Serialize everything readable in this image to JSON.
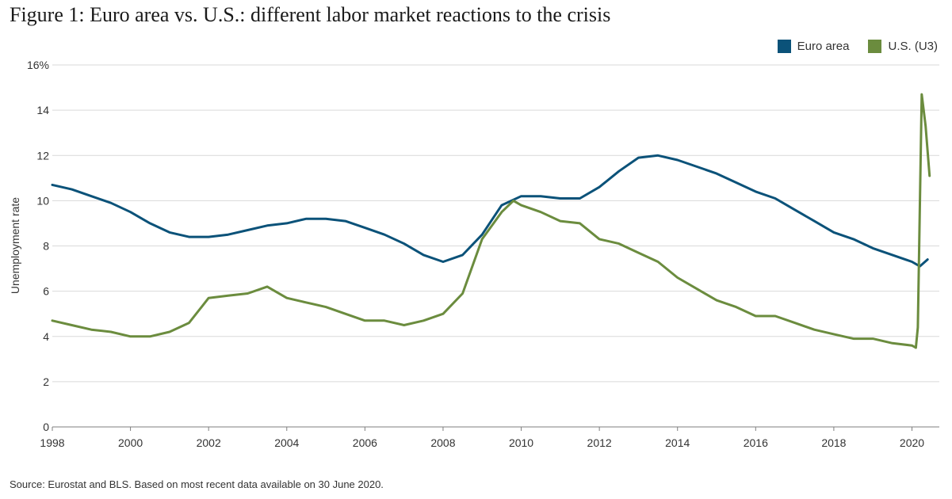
{
  "title": "Figure 1: Euro area vs. U.S.: different labor market reactions to the crisis",
  "source": "Source: Eurostat and BLS. Based on most recent data available on 30 June 2020.",
  "colors": {
    "euro": "#0b5279",
    "us": "#6b8c3e",
    "grid": "#d9d9d9",
    "axis": "#7f7f7f"
  },
  "chart_data": {
    "type": "line",
    "title": "Figure 1: Euro area vs. U.S.: different labor market reactions to the crisis",
    "xlabel": "",
    "ylabel": "Unemployment rate",
    "xlim": [
      1998,
      2020.7
    ],
    "ylim": [
      0,
      16
    ],
    "x_ticks": [
      1998,
      2000,
      2002,
      2004,
      2006,
      2008,
      2010,
      2012,
      2014,
      2016,
      2018,
      2020
    ],
    "y_ticks": [
      0,
      2,
      4,
      6,
      8,
      10,
      12,
      14,
      16
    ],
    "y_tick_labels": [
      "0",
      "2",
      "4",
      "6",
      "8",
      "10",
      "12",
      "14",
      "16%"
    ],
    "grid": true,
    "legend_position": "top-right",
    "series": [
      {
        "name": "Euro area",
        "color": "#0b5279",
        "points": [
          [
            1998.0,
            10.7
          ],
          [
            1998.5,
            10.5
          ],
          [
            1999.0,
            10.2
          ],
          [
            1999.5,
            9.9
          ],
          [
            2000.0,
            9.5
          ],
          [
            2000.5,
            9.0
          ],
          [
            2001.0,
            8.6
          ],
          [
            2001.5,
            8.4
          ],
          [
            2002.0,
            8.4
          ],
          [
            2002.5,
            8.5
          ],
          [
            2003.0,
            8.7
          ],
          [
            2003.5,
            8.9
          ],
          [
            2004.0,
            9.0
          ],
          [
            2004.5,
            9.2
          ],
          [
            2005.0,
            9.2
          ],
          [
            2005.5,
            9.1
          ],
          [
            2006.0,
            8.8
          ],
          [
            2006.5,
            8.5
          ],
          [
            2007.0,
            8.1
          ],
          [
            2007.5,
            7.6
          ],
          [
            2008.0,
            7.3
          ],
          [
            2008.5,
            7.6
          ],
          [
            2009.0,
            8.5
          ],
          [
            2009.5,
            9.8
          ],
          [
            2010.0,
            10.2
          ],
          [
            2010.5,
            10.2
          ],
          [
            2011.0,
            10.1
          ],
          [
            2011.5,
            10.1
          ],
          [
            2012.0,
            10.6
          ],
          [
            2012.5,
            11.3
          ],
          [
            2013.0,
            11.9
          ],
          [
            2013.5,
            12.0
          ],
          [
            2014.0,
            11.8
          ],
          [
            2014.5,
            11.5
          ],
          [
            2015.0,
            11.2
          ],
          [
            2015.5,
            10.8
          ],
          [
            2016.0,
            10.4
          ],
          [
            2016.5,
            10.1
          ],
          [
            2017.0,
            9.6
          ],
          [
            2017.5,
            9.1
          ],
          [
            2018.0,
            8.6
          ],
          [
            2018.5,
            8.3
          ],
          [
            2019.0,
            7.9
          ],
          [
            2019.5,
            7.6
          ],
          [
            2020.0,
            7.3
          ],
          [
            2020.2,
            7.1
          ],
          [
            2020.4,
            7.4
          ]
        ]
      },
      {
        "name": "U.S. (U3)",
        "color": "#6b8c3e",
        "points": [
          [
            1998.0,
            4.7
          ],
          [
            1998.5,
            4.5
          ],
          [
            1999.0,
            4.3
          ],
          [
            1999.5,
            4.2
          ],
          [
            2000.0,
            4.0
          ],
          [
            2000.5,
            4.0
          ],
          [
            2001.0,
            4.2
          ],
          [
            2001.5,
            4.6
          ],
          [
            2002.0,
            5.7
          ],
          [
            2002.5,
            5.8
          ],
          [
            2003.0,
            5.9
          ],
          [
            2003.5,
            6.2
          ],
          [
            2004.0,
            5.7
          ],
          [
            2004.5,
            5.5
          ],
          [
            2005.0,
            5.3
          ],
          [
            2005.5,
            5.0
          ],
          [
            2006.0,
            4.7
          ],
          [
            2006.5,
            4.7
          ],
          [
            2007.0,
            4.5
          ],
          [
            2007.5,
            4.7
          ],
          [
            2008.0,
            5.0
          ],
          [
            2008.5,
            5.9
          ],
          [
            2009.0,
            8.3
          ],
          [
            2009.5,
            9.5
          ],
          [
            2009.8,
            10.0
          ],
          [
            2010.0,
            9.8
          ],
          [
            2010.5,
            9.5
          ],
          [
            2011.0,
            9.1
          ],
          [
            2011.5,
            9.0
          ],
          [
            2012.0,
            8.3
          ],
          [
            2012.5,
            8.1
          ],
          [
            2013.0,
            7.7
          ],
          [
            2013.5,
            7.3
          ],
          [
            2014.0,
            6.6
          ],
          [
            2014.5,
            6.1
          ],
          [
            2015.0,
            5.6
          ],
          [
            2015.5,
            5.3
          ],
          [
            2016.0,
            4.9
          ],
          [
            2016.5,
            4.9
          ],
          [
            2017.0,
            4.6
          ],
          [
            2017.5,
            4.3
          ],
          [
            2018.0,
            4.1
          ],
          [
            2018.5,
            3.9
          ],
          [
            2019.0,
            3.9
          ],
          [
            2019.5,
            3.7
          ],
          [
            2020.0,
            3.6
          ],
          [
            2020.1,
            3.5
          ],
          [
            2020.15,
            4.4
          ],
          [
            2020.25,
            14.7
          ],
          [
            2020.35,
            13.3
          ],
          [
            2020.45,
            11.1
          ]
        ]
      }
    ],
    "legend": [
      "Euro area",
      "U.S. (U3)"
    ]
  }
}
